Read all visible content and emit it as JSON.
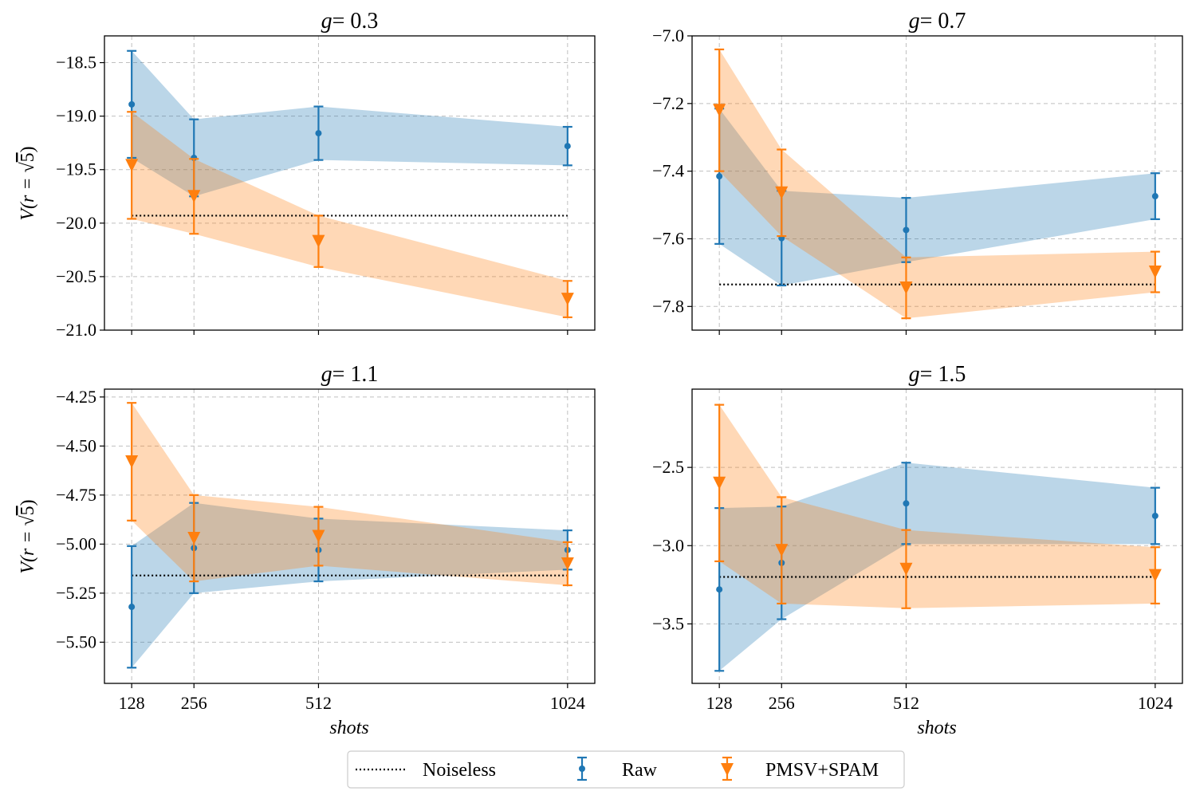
{
  "chart_data": {
    "type": "line",
    "legend": {
      "position": "bottom-center",
      "entries": [
        {
          "label": "Noiseless",
          "style": "dotted",
          "color": "#000000"
        },
        {
          "label": "Raw",
          "style": "errorbar-circle",
          "color": "#1f77b4"
        },
        {
          "label": "PMSV+SPAM",
          "style": "errorbar-triangle",
          "color": "#ff7f0e"
        }
      ]
    },
    "colors": {
      "raw": "#1f77b4",
      "pmsv": "#ff7f0e",
      "raw_band": "#1f77b4",
      "pmsv_band": "#ff7f0e",
      "grid": "#b0b0b0"
    },
    "xlabel": "shots",
    "ylabel_prefix": "V(r = ",
    "ylabel_radical": "5",
    "ylabel_suffix": ")",
    "x_ticks": [
      128,
      256,
      512,
      1024
    ],
    "x_tick_labels": [
      "128",
      "256",
      "512",
      "1024"
    ],
    "xlim": [
      72,
      1080
    ],
    "panels": [
      {
        "title_var": "g",
        "title_value": "= 0.3",
        "ylim": [
          -21.0,
          -18.25
        ],
        "y_ticks": [
          -21.0,
          -20.5,
          -20.0,
          -19.5,
          -19.0,
          -18.5
        ],
        "y_tick_labels": [
          "−21.0",
          "−20.5",
          "−20.0",
          "−19.5",
          "−19.0",
          "−18.5"
        ],
        "noiseless": -19.93,
        "series": [
          {
            "name": "Raw",
            "x": [
              128,
              256,
              512,
              1024
            ],
            "y": [
              -18.89,
              -19.39,
              -19.16,
              -19.28
            ],
            "err": [
              0.5,
              0.36,
              0.25,
              0.18
            ]
          },
          {
            "name": "PMSV+SPAM",
            "x": [
              128,
              256,
              512,
              1024
            ],
            "y": [
              -19.46,
              -19.75,
              -20.17,
              -20.71
            ],
            "err": [
              0.5,
              0.35,
              0.24,
              0.17
            ]
          }
        ]
      },
      {
        "title_var": "g",
        "title_value": "= 0.7",
        "ylim": [
          -7.87,
          -7.0
        ],
        "y_ticks": [
          -7.8,
          -7.6,
          -7.4,
          -7.2,
          -7.0
        ],
        "y_tick_labels": [
          "−7.8",
          "−7.6",
          "−7.4",
          "−7.2",
          "−7.0"
        ],
        "noiseless": -7.735,
        "series": [
          {
            "name": "Raw",
            "x": [
              128,
              256,
              512,
              1024
            ],
            "y": [
              -7.415,
              -7.598,
              -7.574,
              -7.474
            ],
            "err": [
              0.2,
              0.14,
              0.095,
              0.068
            ]
          },
          {
            "name": "PMSV+SPAM",
            "x": [
              128,
              256,
              512,
              1024
            ],
            "y": [
              -7.22,
              -7.464,
              -7.745,
              -7.698
            ],
            "err": [
              0.18,
              0.128,
              0.09,
              0.06
            ]
          }
        ]
      },
      {
        "title_var": "g",
        "title_value": "= 1.1",
        "ylim": [
          -5.71,
          -4.21
        ],
        "y_ticks": [
          -5.5,
          -5.25,
          -5.0,
          -4.75,
          -4.5,
          -4.25
        ],
        "y_tick_labels": [
          "−5.50",
          "−5.25",
          "−5.00",
          "−4.75",
          "−4.50",
          "−4.25"
        ],
        "noiseless": -5.16,
        "series": [
          {
            "name": "Raw",
            "x": [
              128,
              256,
              512,
              1024
            ],
            "y": [
              -5.32,
              -5.02,
              -5.03,
              -5.03
            ],
            "err": [
              0.31,
              0.23,
              0.16,
              0.1
            ]
          },
          {
            "name": "PMSV+SPAM",
            "x": [
              128,
              256,
              512,
              1024
            ],
            "y": [
              -4.58,
              -4.97,
              -4.96,
              -5.1
            ],
            "err": [
              0.3,
              0.22,
              0.15,
              0.11
            ]
          }
        ]
      },
      {
        "title_var": "g",
        "title_value": "= 1.5",
        "ylim": [
          -3.88,
          -2.0
        ],
        "y_ticks": [
          -3.5,
          -3.0,
          -2.5
        ],
        "y_tick_labels": [
          "−3.5",
          "−3.0",
          "−2.5"
        ],
        "noiseless": -3.2,
        "series": [
          {
            "name": "Raw",
            "x": [
              128,
              256,
              512,
              1024
            ],
            "y": [
              -3.28,
              -3.11,
              -2.73,
              -2.81
            ],
            "err": [
              0.52,
              0.36,
              0.26,
              0.18
            ]
          },
          {
            "name": "PMSV+SPAM",
            "x": [
              128,
              256,
              512,
              1024
            ],
            "y": [
              -2.6,
              -3.03,
              -3.15,
              -3.19
            ],
            "err": [
              0.5,
              0.34,
              0.25,
              0.18
            ]
          }
        ]
      }
    ]
  }
}
